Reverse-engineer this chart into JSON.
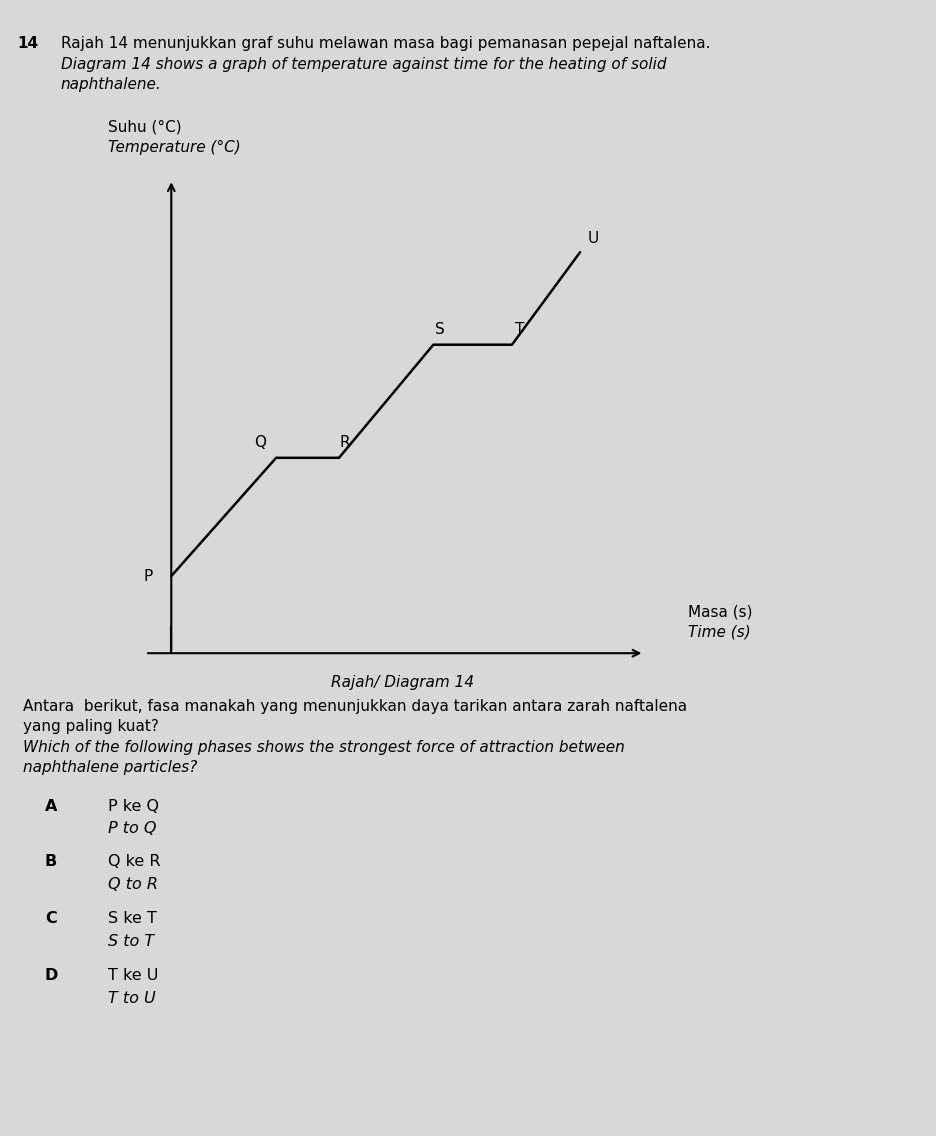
{
  "title_num": "14",
  "title_malay": "Rajah 14 menunjukkan graf suhu melawan masa bagi pemanasan pepejal naftalena.",
  "title_eng1": "Diagram 14 shows a graph of temperature against time for the heating of solid",
  "title_eng2": "naphthalene.",
  "ylabel_malay": "Suhu (°C)",
  "ylabel_eng": "Temperature (°C)",
  "xlabel_malay": "Masa (s)",
  "xlabel_eng": "Time (s)",
  "diagram_label": "Rajah/ Diagram 14",
  "x_coords": [
    0,
    2,
    3.2,
    5.0,
    6.5,
    7.8
  ],
  "y_coords": [
    1.5,
    3.8,
    3.8,
    6.0,
    6.0,
    7.8
  ],
  "point_labels": [
    "P",
    "Q",
    "R",
    "S",
    "T",
    "U"
  ],
  "label_dx": [
    -0.35,
    -0.3,
    0.12,
    0.12,
    0.15,
    0.15
  ],
  "label_dy": [
    0.0,
    0.15,
    0.15,
    0.15,
    0.15,
    0.12
  ],
  "label_ha": [
    "right",
    "center",
    "center",
    "center",
    "center",
    "left"
  ],
  "label_va": [
    "center",
    "bottom",
    "bottom",
    "bottom",
    "bottom",
    "bottom"
  ],
  "question_malay1": "Antara  berikut, fasa manakah yang menunjukkan daya tarikan antara zarah naftalena",
  "question_malay2": "yang paling kuat?",
  "question_eng1": "Which of the following phases shows the strongest force of attraction between",
  "question_eng2": "naphthalene particles?",
  "options": [
    {
      "letter": "A",
      "malay": "P ke Q",
      "english": "P to Q"
    },
    {
      "letter": "B",
      "malay": "Q ke R",
      "english": "Q to R"
    },
    {
      "letter": "C",
      "malay": "S ke T",
      "english": "S to T"
    },
    {
      "letter": "D",
      "malay": "T ke U",
      "english": "T to U"
    }
  ],
  "bg_color": "#d8d8d8",
  "line_color": "#000000",
  "text_color": "#000000",
  "xlim": [
    -0.5,
    9.5
  ],
  "ylim": [
    0.0,
    9.5
  ]
}
